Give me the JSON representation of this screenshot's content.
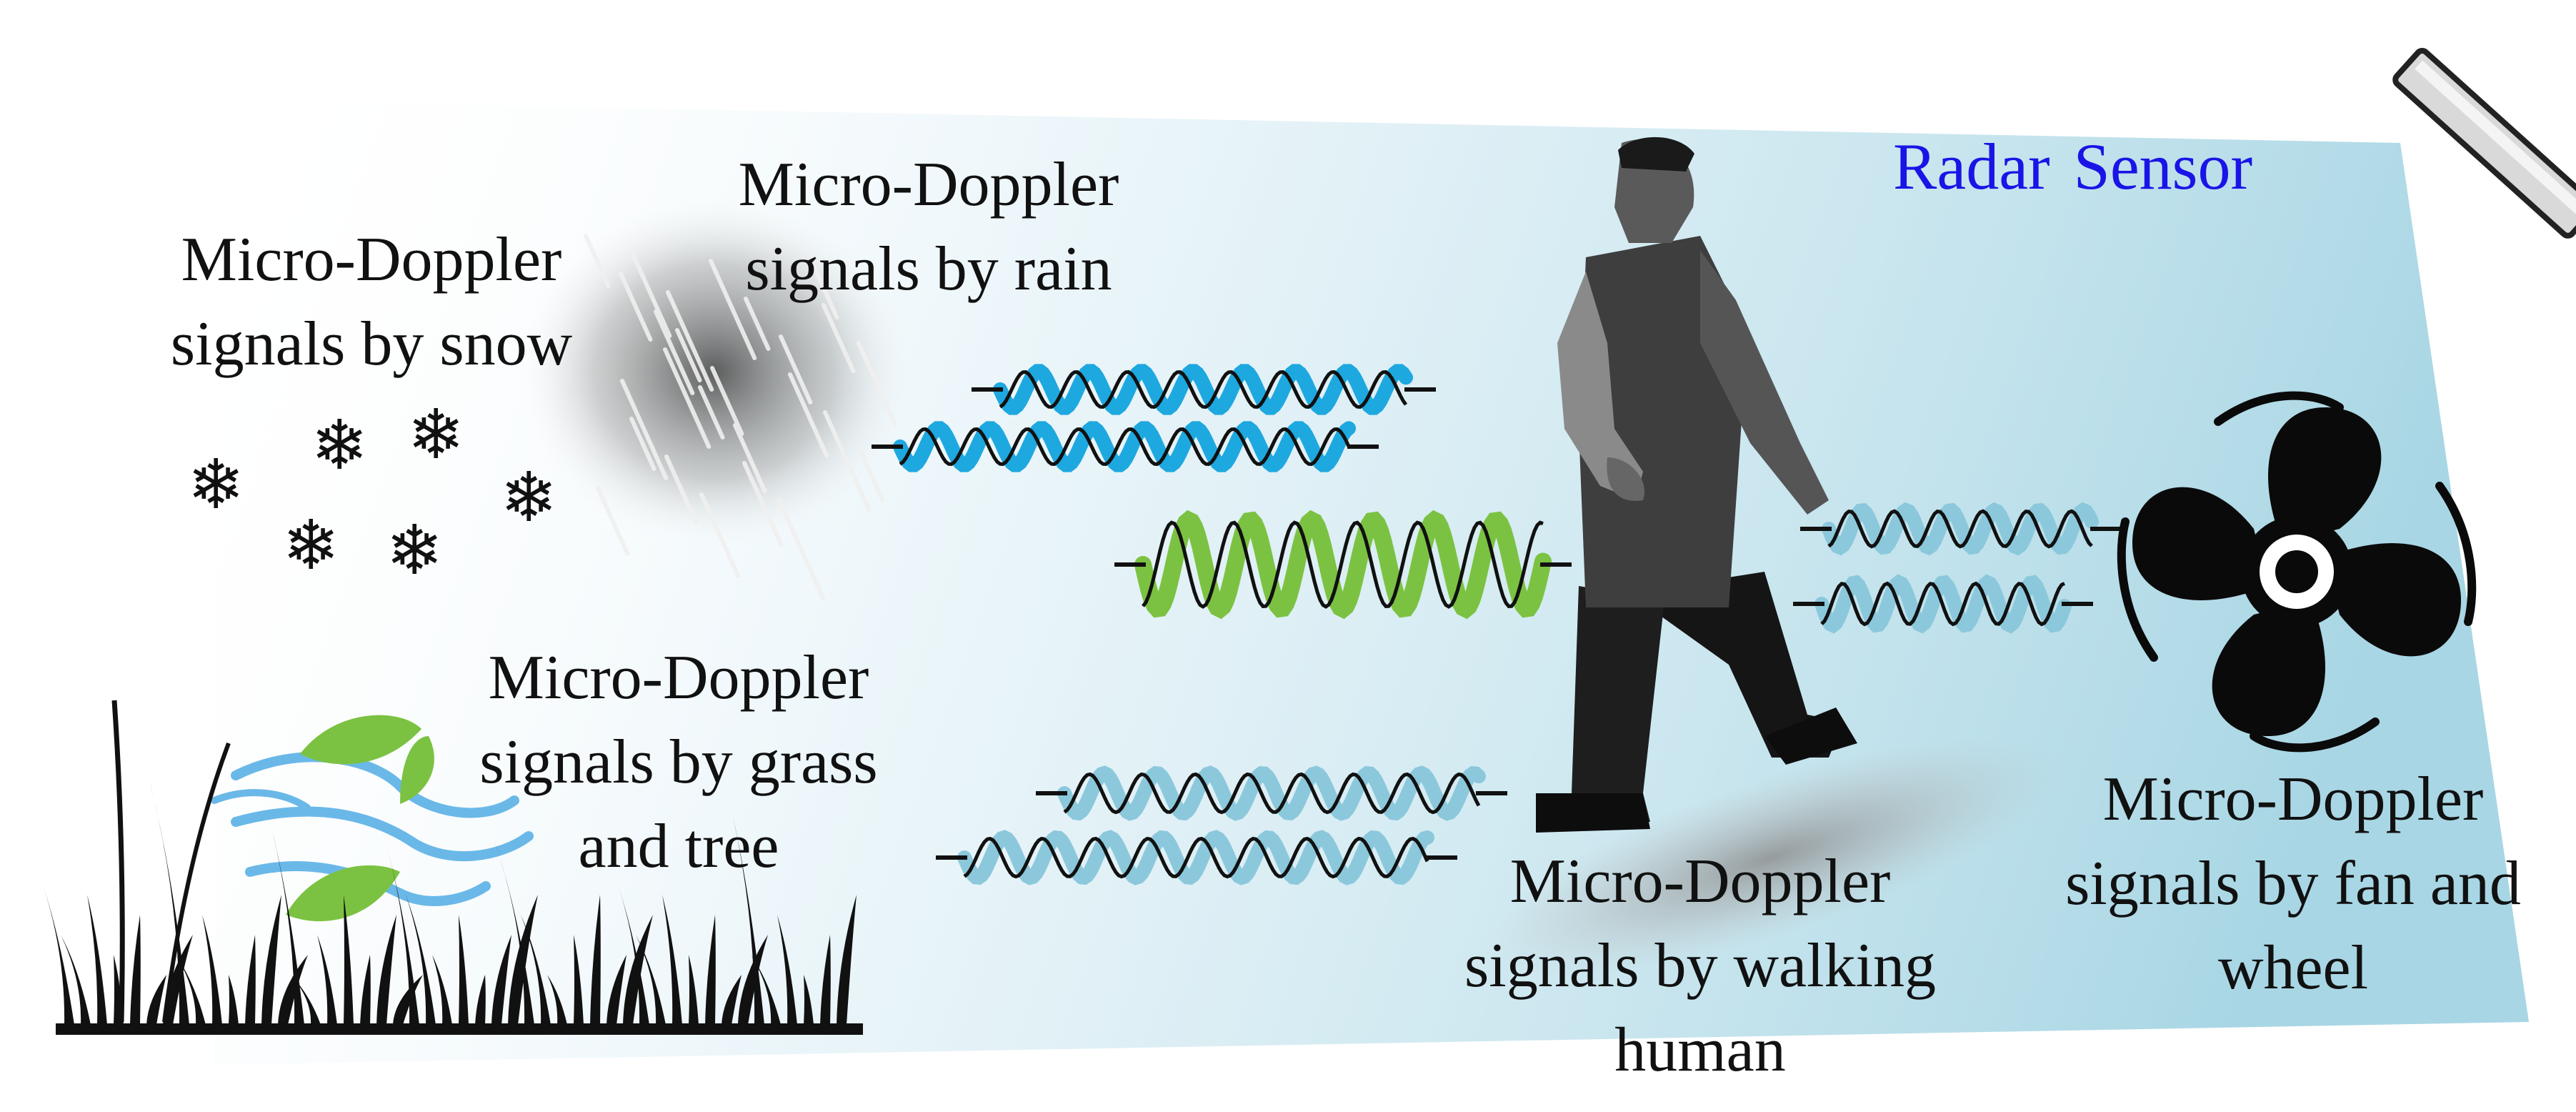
{
  "radar_sensor": {
    "label": "Radar Sensor"
  },
  "sources": {
    "snow": {
      "line1": "Micro-Doppler",
      "line2": "signals  by snow"
    },
    "rain": {
      "line1": "Micro-Doppler",
      "line2": "signals  by rain"
    },
    "grass": {
      "line1": "Micro-Doppler",
      "line2": "signals  by grass",
      "line3": "and tree"
    },
    "human": {
      "line1": "Micro-Doppler",
      "line2": "signals  by walking",
      "line3": "human"
    },
    "fan": {
      "line1": "Micro-Doppler",
      "line2": "signals  by fan and",
      "line3": "wheel"
    }
  },
  "snowflake_glyph": "❄",
  "colors": {
    "radar_text": "#1a14e6",
    "rain_wave": "#1ea8e0",
    "human_wave": "#7cc242",
    "grass_wave": "#8cc8dc",
    "fan_wave": "#8cc8dc",
    "beam": "#9fd2e0",
    "leaf": "#7cc242"
  },
  "icons": [
    "radar-sensor-icon",
    "snowflake-icon",
    "rain-icon",
    "grass-icon",
    "wind-icon",
    "leaf-icon",
    "walking-human-icon",
    "fan-icon"
  ]
}
